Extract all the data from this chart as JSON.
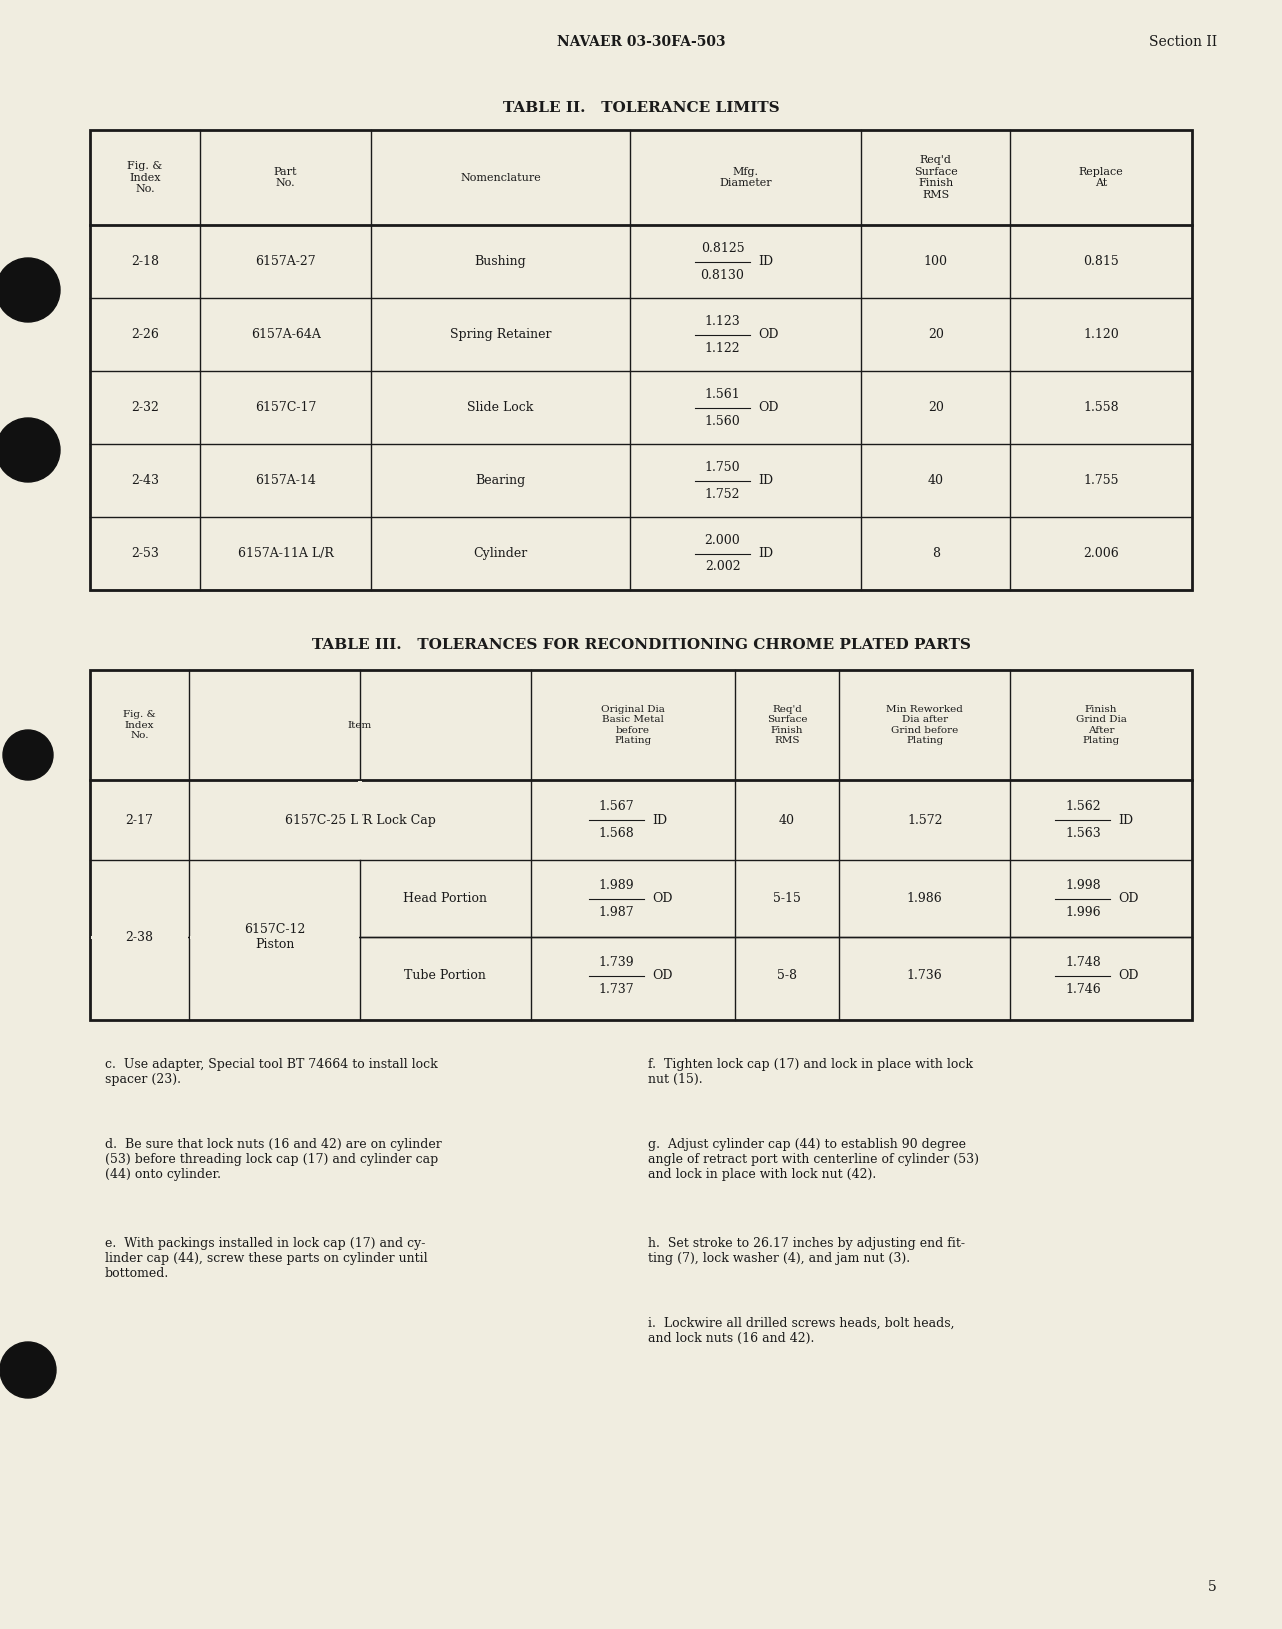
{
  "page_bg": "#f0ede0",
  "header_left": "NAVAER 03-30FA-503",
  "header_right": "Section II",
  "table2_title": "TABLE II.   TOLERANCE LIMITS",
  "table3_title": "TABLE III.   TOLERANCES FOR RECONDITIONING CHROME PLATED PARTS",
  "paragraphs_left": [
    "c.  Use adapter, Special tool BT 74664 to install lock\nspacer (23).",
    "d.  Be sure that lock nuts (16 and 42) are on cylinder\n(53) before threading lock cap (17) and cylinder cap\n(44) onto cylinder.",
    "e.  With packings installed in lock cap (17) and cy-\nlinder cap (44), screw these parts on cylinder until\nbottomed."
  ],
  "paragraphs_right": [
    "f.  Tighten lock cap (17) and lock in place with lock\nnut (15).",
    "g.  Adjust cylinder cap (44) to establish 90 degree\nangle of retract port with centerline of cylinder (53)\nand lock in place with lock nut (42).",
    "h.  Set stroke to 26.17 inches by adjusting end fit-\nting (7), lock washer (4), and jam nut (3).",
    "i.  Lockwire all drilled screws heads, bolt heads,\nand lock nuts (16 and 42)."
  ],
  "page_number": "5"
}
